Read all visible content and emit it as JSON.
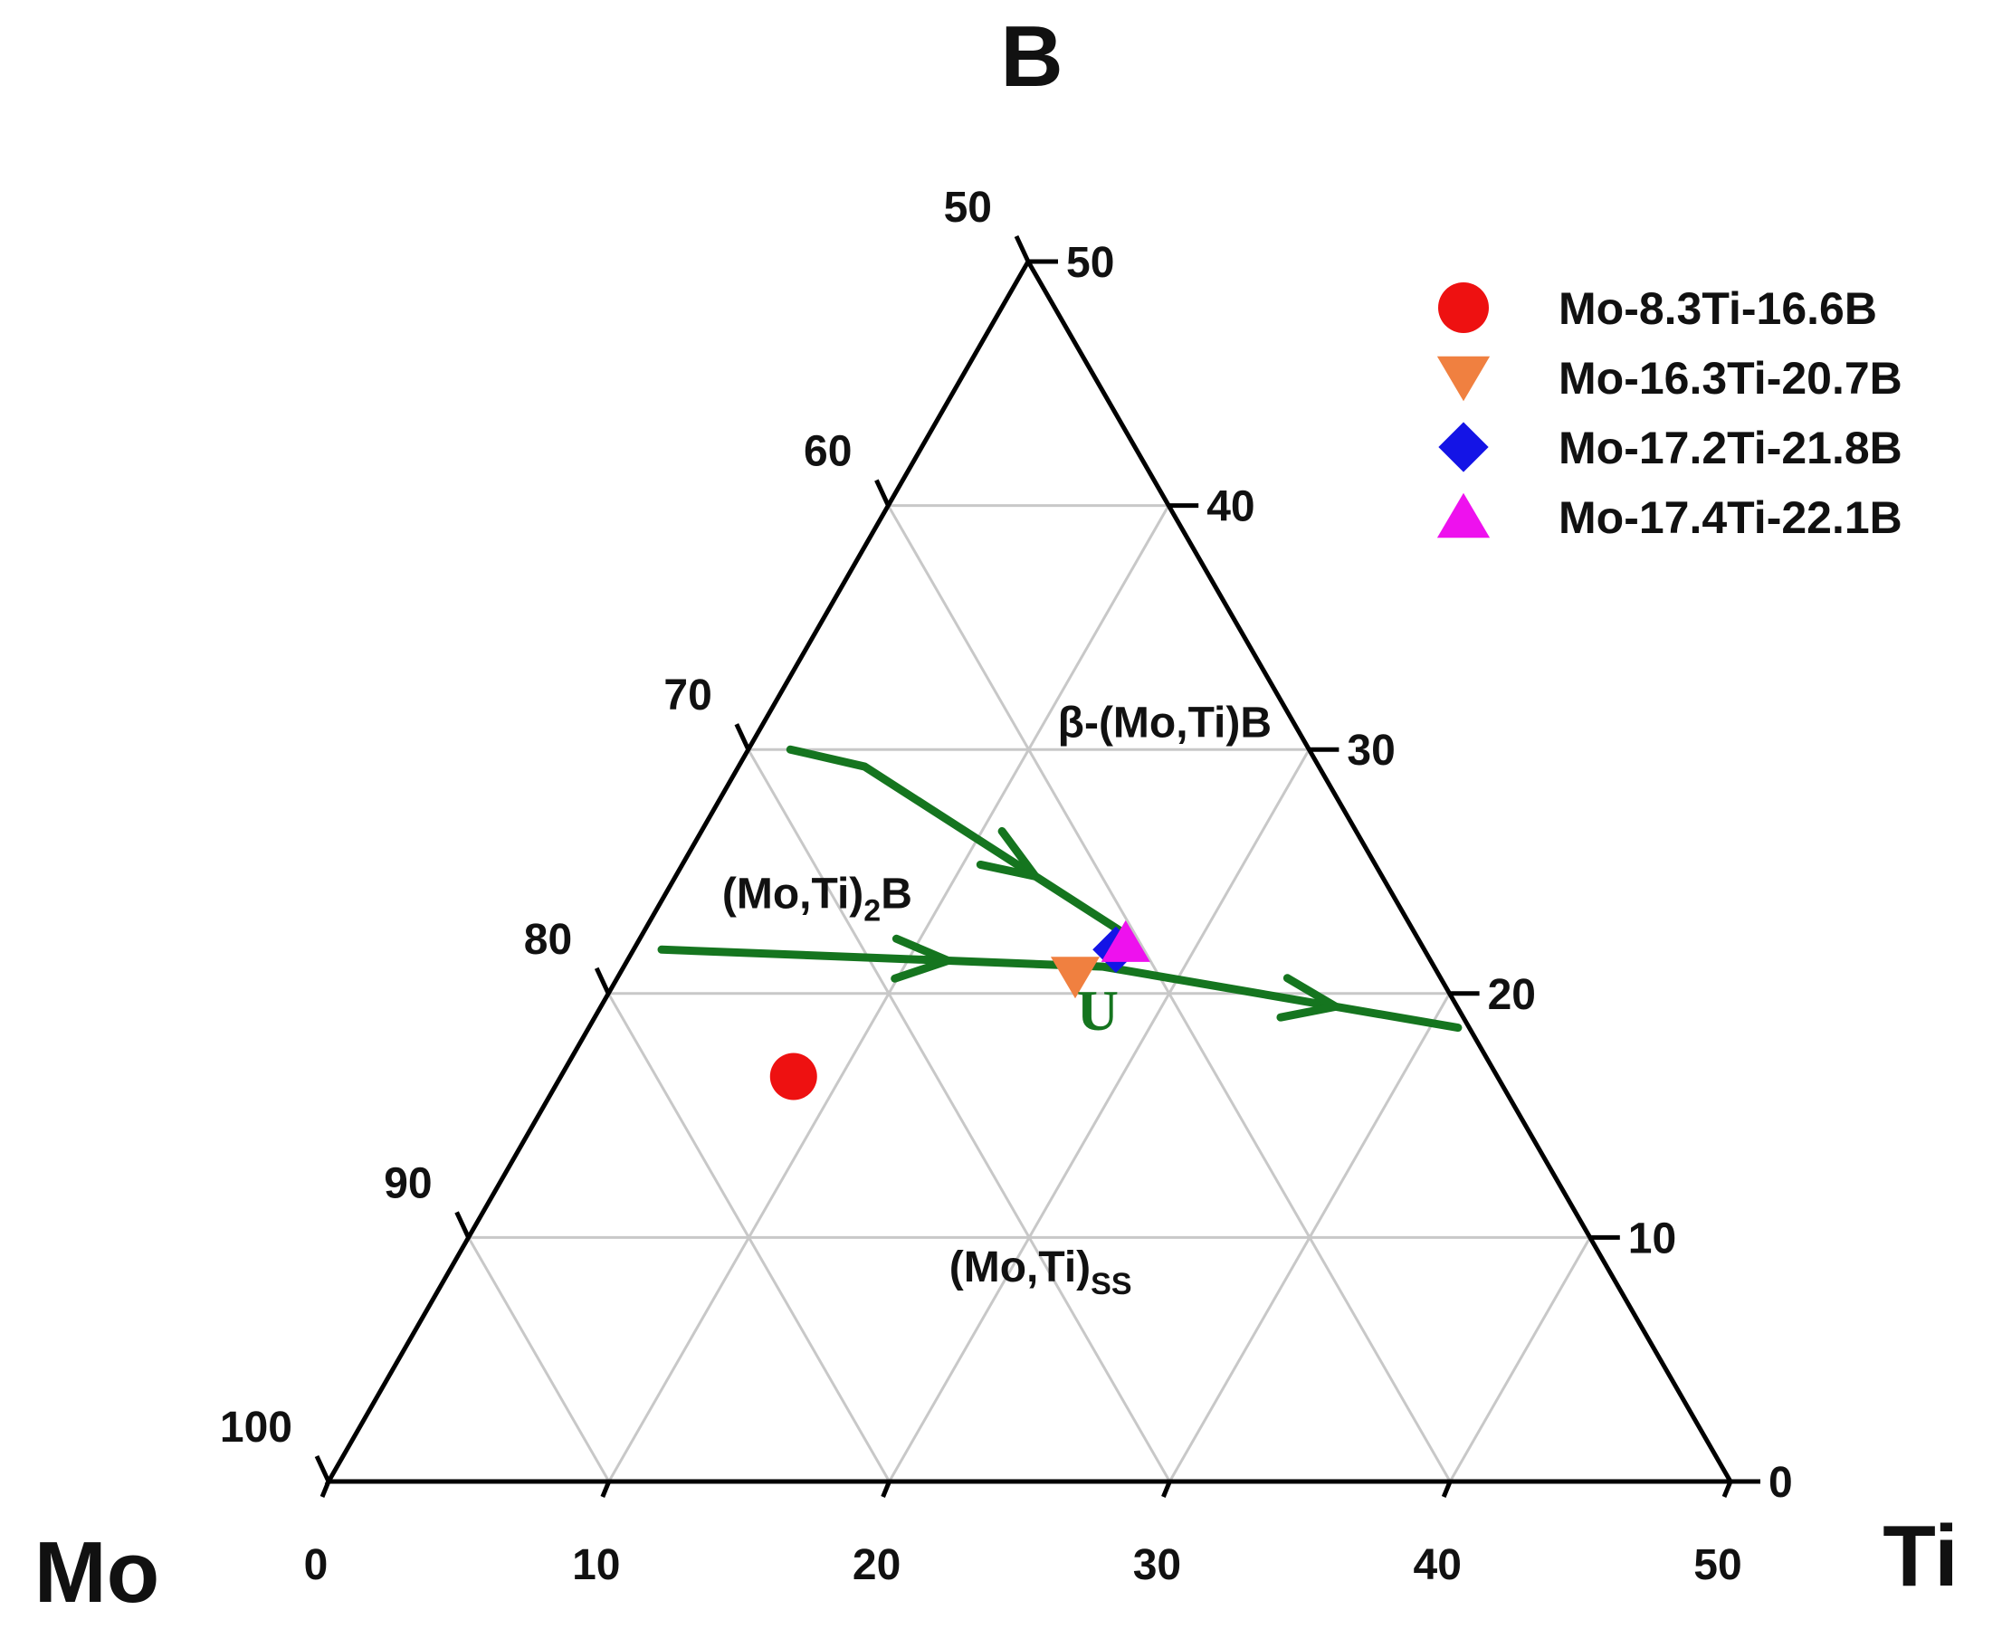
{
  "chart_data": {
    "type": "ternary",
    "vertices": {
      "top": "B",
      "left": "Mo",
      "right": "Ti"
    },
    "axes": {
      "mo": {
        "ticks": [
          "50",
          "60",
          "70",
          "80",
          "90",
          "100"
        ]
      },
      "b": {
        "ticks": [
          "50",
          "40",
          "30",
          "20",
          "10",
          "0"
        ]
      },
      "ti": {
        "ticks": [
          "0",
          "10",
          "20",
          "30",
          "40",
          "50"
        ]
      }
    },
    "grid": true,
    "grid_step": 10,
    "ranges": {
      "Ti": [
        0,
        50
      ],
      "B": [
        0,
        50
      ],
      "Mo": [
        50,
        100
      ]
    },
    "legend_position": "top-right",
    "series": [
      {
        "name": "Mo-8.3Ti-16.6B",
        "marker": "circle",
        "color": "#ee1111",
        "points": [
          {
            "ti": 8.3,
            "b": 16.6
          }
        ]
      },
      {
        "name": "Mo-16.3Ti-20.7B",
        "marker": "triangle-down",
        "color": "#f08040",
        "points": [
          {
            "ti": 16.3,
            "b": 20.7
          }
        ]
      },
      {
        "name": "Mo-17.2Ti-21.8B",
        "marker": "diamond",
        "color": "#1414e6",
        "points": [
          {
            "ti": 17.2,
            "b": 21.8
          }
        ]
      },
      {
        "name": "Mo-17.4Ti-22.1B",
        "marker": "triangle-up",
        "color": "#ee11ee",
        "points": [
          {
            "ti": 17.4,
            "b": 22.1
          }
        ]
      }
    ],
    "boundary_lines": [
      {
        "color": "#15751f",
        "points": [
          {
            "ti": 1.5,
            "b": 30
          },
          {
            "ti": 4.5,
            "b": 29.3
          },
          {
            "ti": 17.1,
            "b": 22.5
          }
        ]
      },
      {
        "color": "#15751f",
        "points": [
          {
            "ti": 1,
            "b": 21.8
          },
          {
            "ti": 17.1,
            "b": 21.1
          },
          {
            "ti": 31,
            "b": 18.6
          }
        ]
      }
    ],
    "region_labels": [
      {
        "text": "β-(Mo,Ti)B",
        "ti": 14.6,
        "b": 30.5
      },
      {
        "text": "(Mo,Ti)",
        "sub": "2",
        "suffix": "B",
        "ti": 5.7,
        "b": 23.5
      },
      {
        "text": "(Mo,Ti)",
        "sub": "SS",
        "suffix": "",
        "ti": 21.3,
        "b": 8.2
      }
    ],
    "point_labels": [
      {
        "text": "U",
        "ti": 18.2,
        "b": 18.5
      }
    ]
  }
}
